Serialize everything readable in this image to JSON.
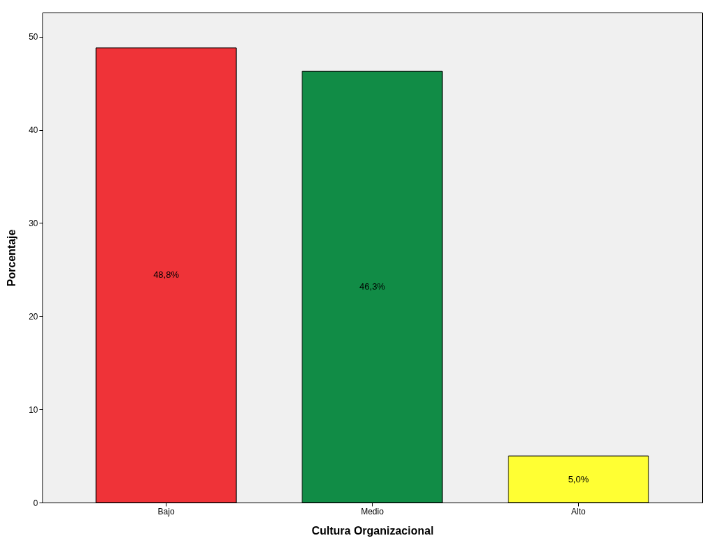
{
  "chart_data": {
    "type": "bar",
    "xlabel": "Cultura Organizacional",
    "ylabel": "Porcentaje",
    "categories": [
      "Bajo",
      "Medio",
      "Alto"
    ],
    "values": [
      48.8,
      46.3,
      5.0
    ],
    "colors": [
      "#ef3338",
      "#118c46",
      "#ffff33"
    ],
    "value_labels": [
      "48,8%",
      "46,3%",
      "5,0%"
    ],
    "ylim": [
      0,
      52.6
    ],
    "yticks": [
      0,
      10,
      20,
      30,
      40,
      50
    ],
    "grid": false
  }
}
